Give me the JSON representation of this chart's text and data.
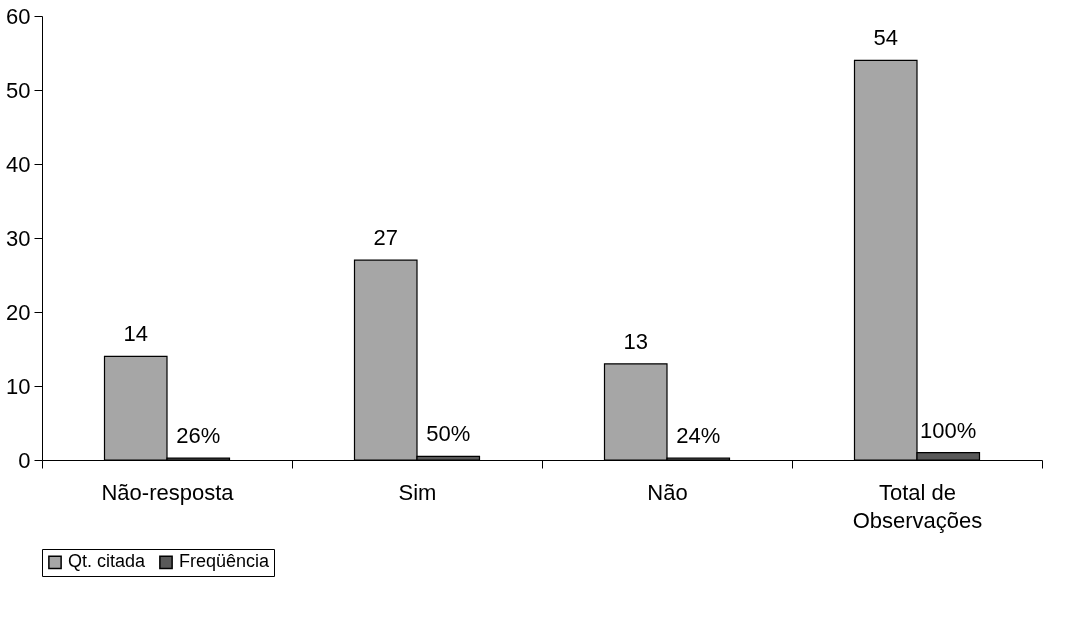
{
  "chart_data": {
    "type": "bar",
    "categories": [
      "Não-resposta",
      "Sim",
      "Não",
      "Total de Observações"
    ],
    "series": [
      {
        "name": "Qt. citada",
        "color": "#a6a6a6",
        "values": [
          14,
          27,
          13,
          54
        ],
        "value_labels": [
          "14",
          "27",
          "13",
          "54"
        ]
      },
      {
        "name": "Freqüência",
        "color": "#595959",
        "values": [
          0.26,
          0.5,
          0.24,
          1
        ],
        "value_labels": [
          "26%",
          "50%",
          "24%",
          "100%"
        ]
      }
    ],
    "ylim": [
      0,
      60
    ],
    "yticks": [
      0,
      10,
      20,
      30,
      40,
      50,
      60
    ],
    "grid": false,
    "legend": "bottom"
  }
}
